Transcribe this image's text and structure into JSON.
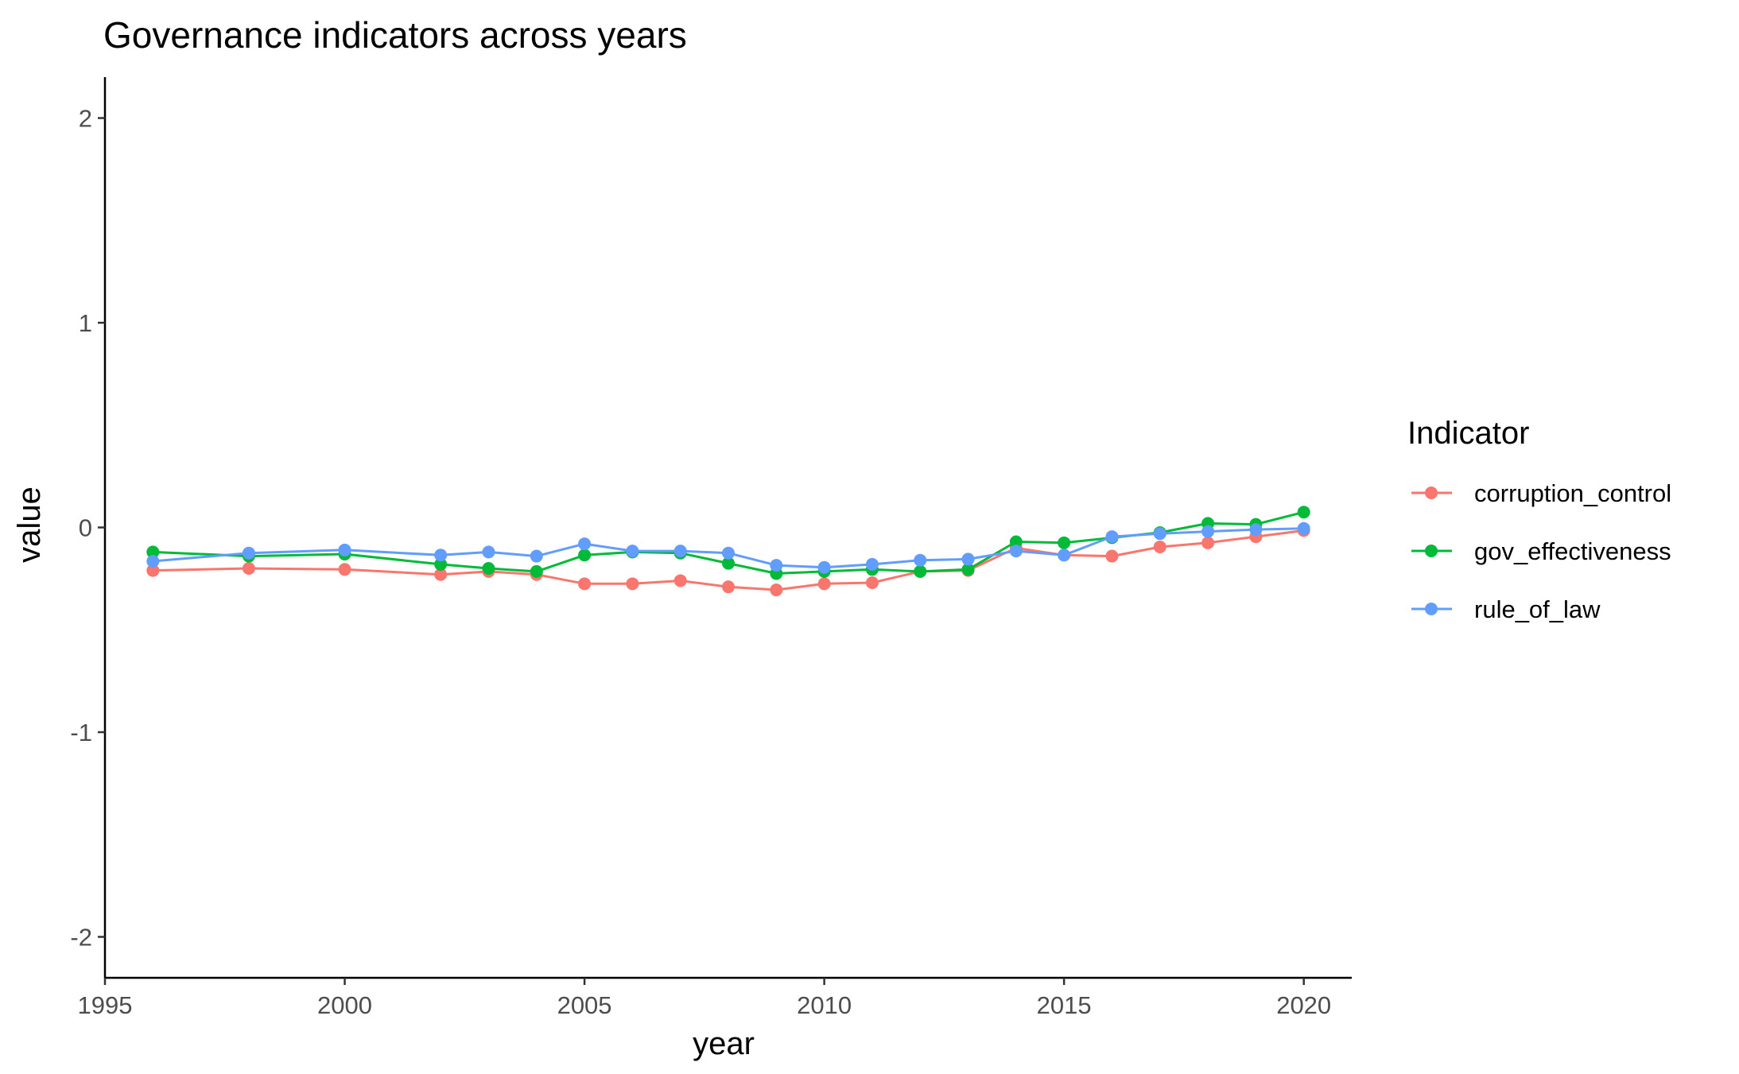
{
  "chart_data": {
    "type": "line",
    "title": "Governance indicators across years",
    "xlabel": "year",
    "ylabel": "value",
    "xlim": [
      1995,
      2021
    ],
    "ylim": [
      -2.2,
      2.2
    ],
    "x_ticks": [
      1995,
      2000,
      2005,
      2010,
      2015,
      2020
    ],
    "y_ticks": [
      -2,
      -1,
      0,
      1,
      2
    ],
    "grid": false,
    "legend": {
      "title": "Indicator",
      "position": "right"
    },
    "x": [
      1996,
      1998,
      2000,
      2002,
      2003,
      2004,
      2005,
      2006,
      2007,
      2008,
      2009,
      2010,
      2011,
      2012,
      2013,
      2014,
      2015,
      2016,
      2017,
      2018,
      2019,
      2020
    ],
    "series": [
      {
        "name": "corruption_control",
        "color": "#F8766D",
        "values": [
          -0.21,
          -0.2,
          -0.205,
          -0.23,
          -0.215,
          -0.23,
          -0.275,
          -0.275,
          -0.26,
          -0.29,
          -0.305,
          -0.275,
          -0.27,
          -0.215,
          -0.21,
          -0.1,
          -0.135,
          -0.14,
          -0.095,
          -0.075,
          -0.045,
          -0.015
        ]
      },
      {
        "name": "gov_effectiveness",
        "color": "#00BA38",
        "values": [
          -0.12,
          -0.14,
          -0.13,
          -0.18,
          -0.2,
          -0.215,
          -0.135,
          -0.12,
          -0.125,
          -0.175,
          -0.225,
          -0.215,
          -0.205,
          -0.215,
          -0.205,
          -0.07,
          -0.075,
          -0.05,
          -0.025,
          0.02,
          0.015,
          0.075
        ]
      },
      {
        "name": "rule_of_law",
        "color": "#619CFF",
        "values": [
          -0.165,
          -0.125,
          -0.11,
          -0.135,
          -0.12,
          -0.14,
          -0.08,
          -0.115,
          -0.115,
          -0.125,
          -0.185,
          -0.195,
          -0.18,
          -0.16,
          -0.155,
          -0.115,
          -0.135,
          -0.045,
          -0.03,
          -0.02,
          -0.01,
          -0.005
        ]
      }
    ]
  }
}
